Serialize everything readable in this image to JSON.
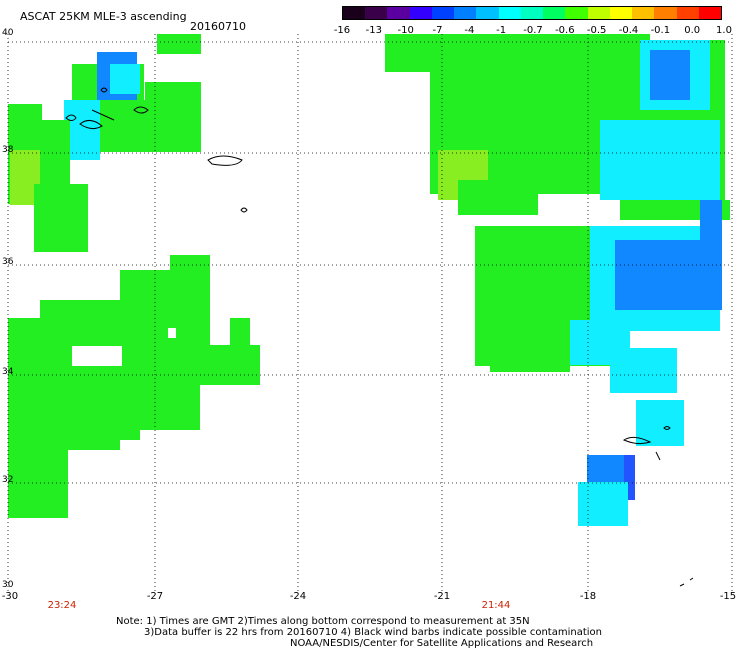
{
  "header": {
    "title": "ASCAT 25KM MLE-3 ascending",
    "date": "20160710"
  },
  "colorbar": {
    "labels": [
      "-16",
      "-13",
      "-10",
      "-7",
      "-4",
      "-1",
      "-0.7",
      "-0.6",
      "-0.5",
      "-0.4",
      "-0.1",
      "0.0",
      "1.0"
    ],
    "colors": [
      "#1a001a",
      "#3a004a",
      "#5a00a0",
      "#3300ff",
      "#0040ff",
      "#0080ff",
      "#00c0ff",
      "#00ffff",
      "#00ffc0",
      "#00ff60",
      "#40ff00",
      "#c0ff00",
      "#ffff00",
      "#ffc000",
      "#ff8000",
      "#ff4000",
      "#ff0000"
    ]
  },
  "axes": {
    "y_labels": [
      "40",
      "38",
      "36",
      "34",
      "32",
      "30"
    ],
    "x_labels": [
      "-30",
      "-27",
      "-24",
      "-21",
      "-18",
      "-15"
    ]
  },
  "times": {
    "left": "23:24",
    "right": "21:44"
  },
  "notes": {
    "line1": "Note: 1) Times are GMT 2)Times along bottom correspond to measurement at 35N",
    "line2": "3)Data buffer is 22 hrs from 20160710 4) Black wind barbs indicate possible contamination",
    "line3": "NOAA/NESDIS/Center for Satellite Applications and Research"
  },
  "colors": {
    "green": "#22ee22",
    "lime": "#88ee22",
    "cyan": "#11eeff",
    "blue": "#1188ff",
    "deep_blue": "#2255ff"
  }
}
